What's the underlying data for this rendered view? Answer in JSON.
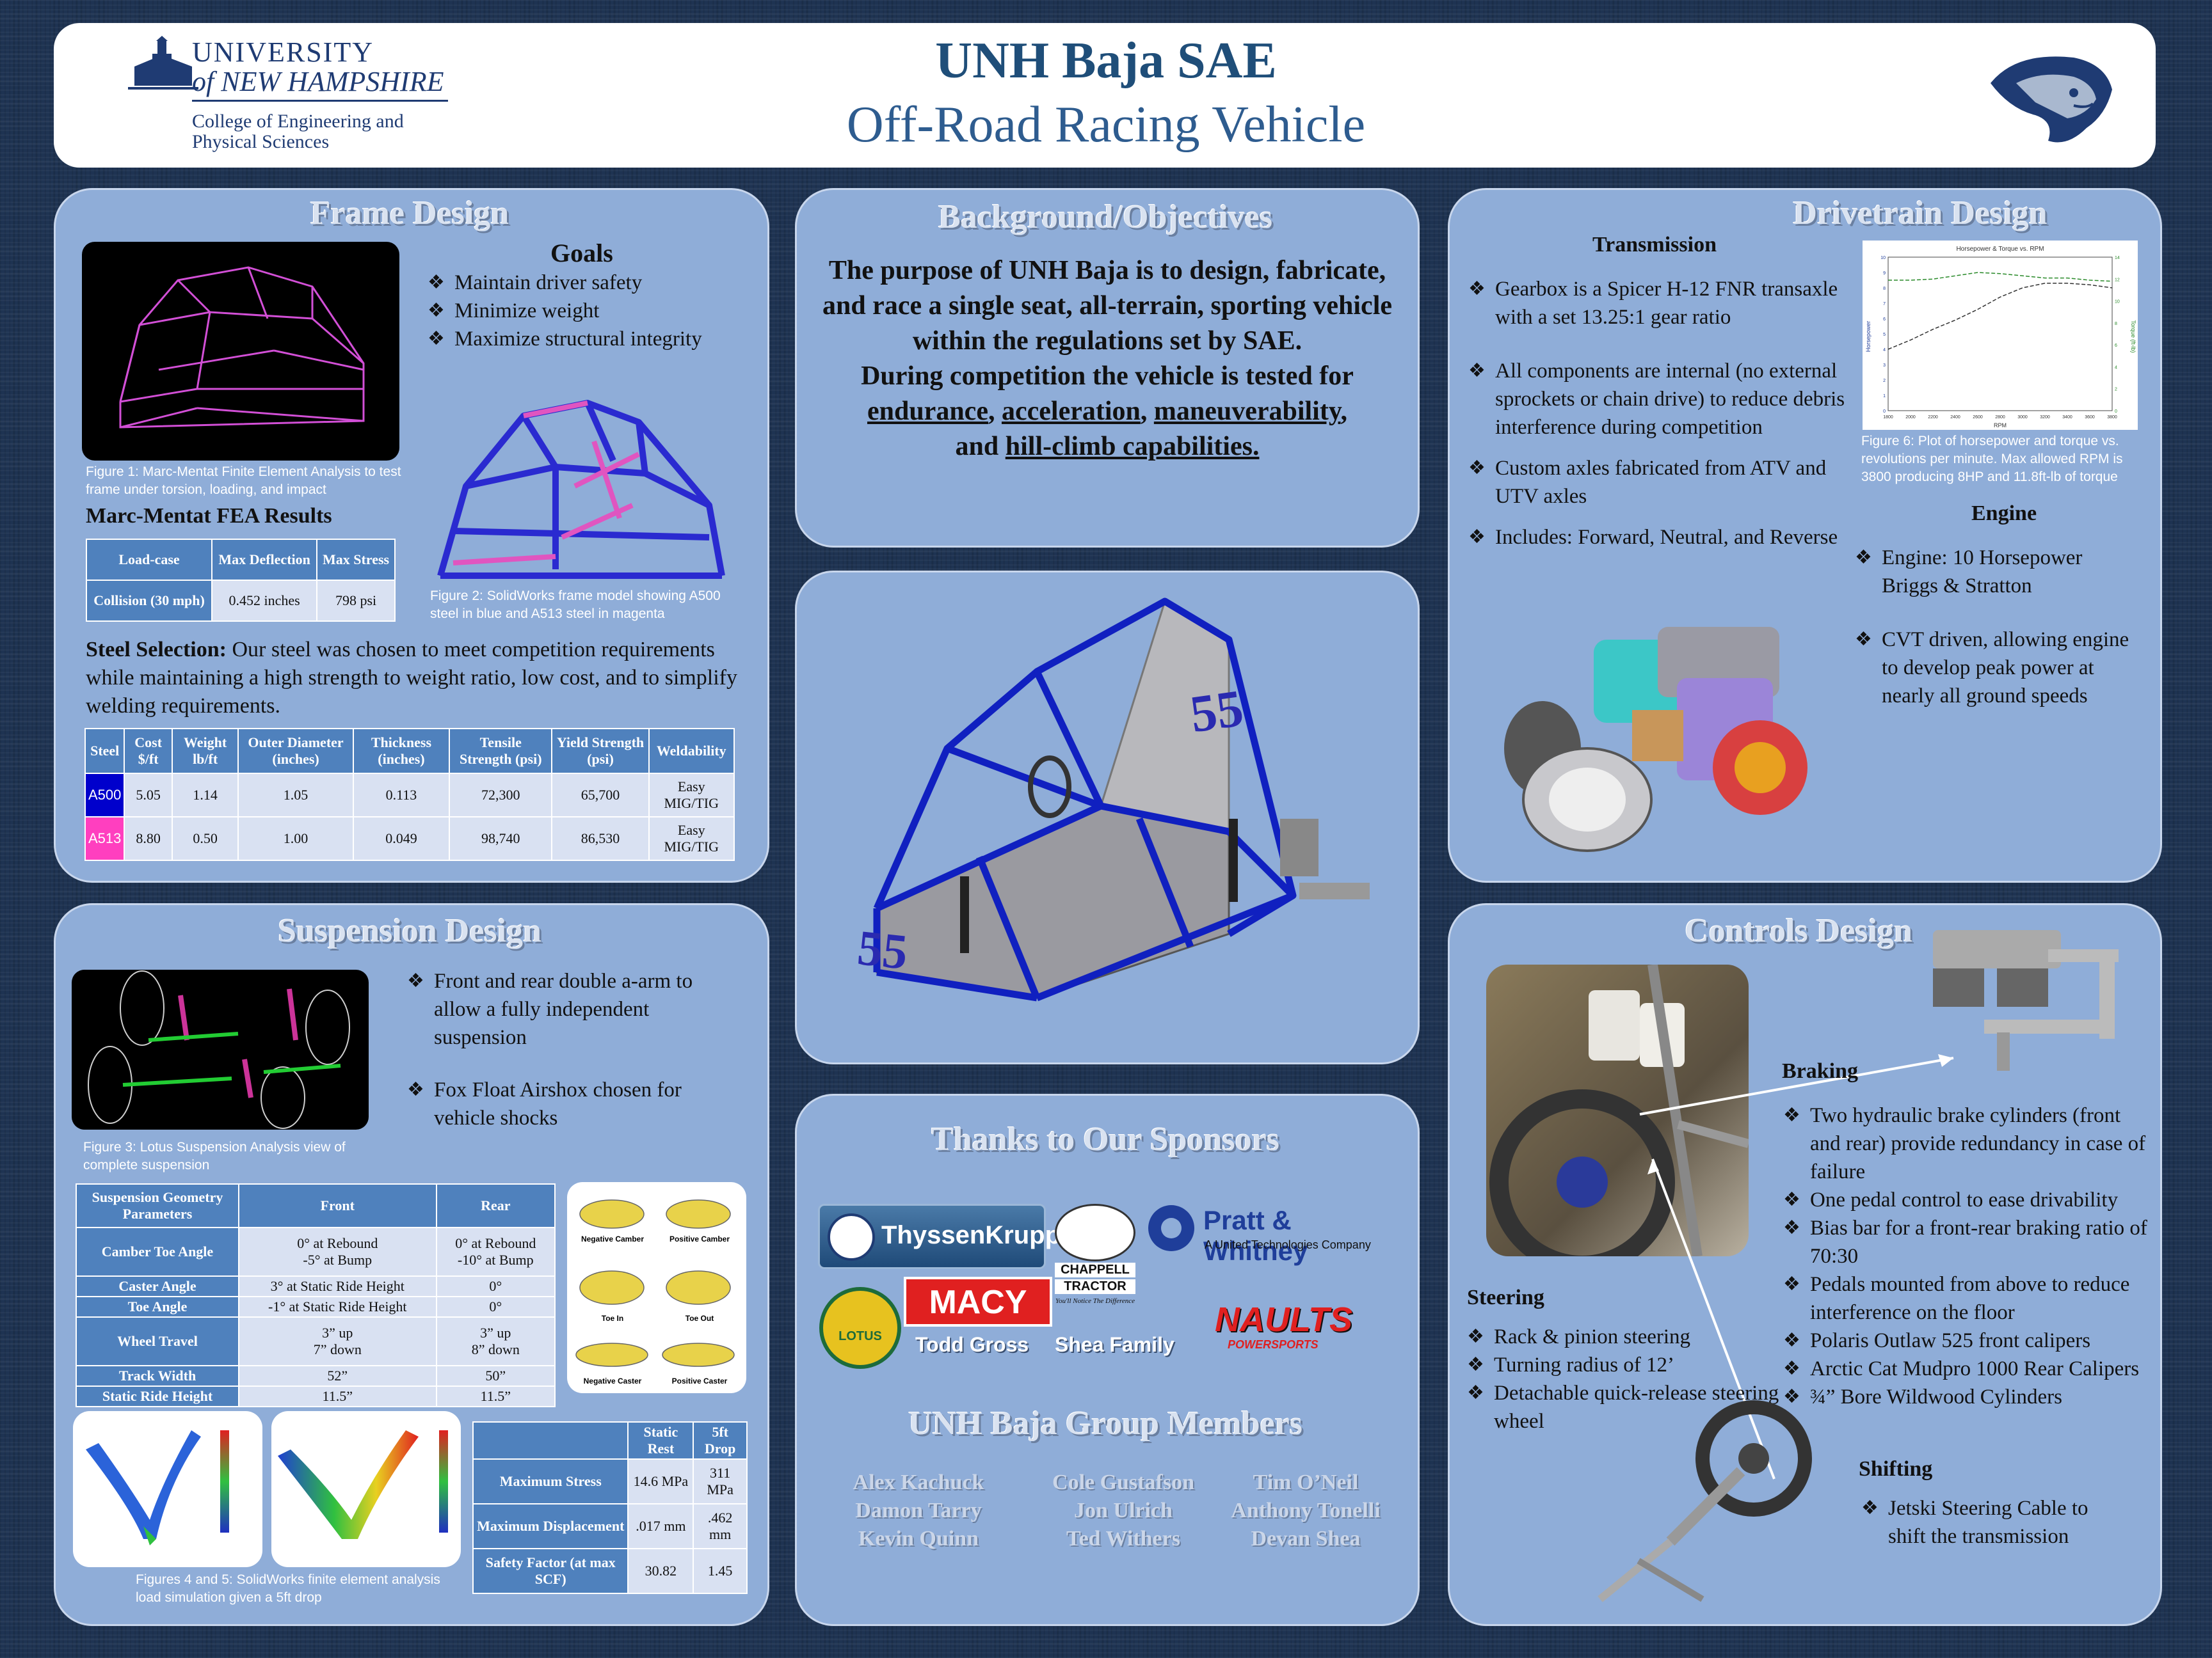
{
  "header": {
    "title": "UNH Baja SAE",
    "subtitle": "Off-Road Racing Vehicle",
    "university_line1": "UNIVERSITY",
    "university_line2": "of NEW HAMPSHIRE",
    "college": "College of Engineering and Physical Sciences"
  },
  "frame": {
    "title": "Frame Design",
    "goals_title": "Goals",
    "goals": [
      "Maintain driver safety",
      "Minimize weight",
      "Maximize structural integrity"
    ],
    "fig1": "Figure 1: Marc-Mentat Finite Element Analysis to test frame under torsion, loading, and impact",
    "fig2": "Figure 2: SolidWorks frame model showing A500 steel in blue and A513 steel in magenta",
    "fea_title": "Marc-Mentat FEA Results",
    "fea_headers": [
      "Load-case",
      "Max Deflection",
      "Max Stress"
    ],
    "fea_row": [
      "Collision (30 mph)",
      "0.452 inches",
      "798 psi"
    ],
    "steel_label": "Steel Selection:",
    "steel_text": " Our steel was chosen to meet competition requirements while maintaining a high strength to weight ratio, low cost, and to simplify welding requirements.",
    "steel_headers": [
      "Steel",
      "Cost $/ft",
      "Weight lb/ft",
      "Outer Diameter (inches)",
      "Thickness (inches)",
      "Tensile Strength (psi)",
      "Yield Strength (psi)",
      "Weldability"
    ],
    "steel_rows": [
      [
        "A500",
        "5.05",
        "1.14",
        "1.05",
        "0.113",
        "72,300",
        "65,700",
        "Easy MIG/TIG"
      ],
      [
        "A513",
        "8.80",
        "0.50",
        "1.00",
        "0.049",
        "98,740",
        "86,530",
        "Easy MIG/TIG"
      ]
    ],
    "colors": {
      "a500": "#0000cc",
      "a513": "#ff3fbf"
    }
  },
  "background": {
    "title": "Background/Objectives",
    "p1": "The purpose of UNH Baja is to design, fabricate, and race a single seat, all-terrain, sporting vehicle within the regulations set by SAE.",
    "p2_start": "During competition the vehicle is tested for",
    "link1": "endurance",
    "link2": "acceleration",
    "link3": "maneuverability",
    "and_text": "and",
    "link4": "hill-climb capabilities."
  },
  "car": {
    "number": "55"
  },
  "drivetrain": {
    "title": "Drivetrain Design",
    "transmission_title": "Transmission",
    "transmission": [
      "Gearbox is a Spicer H-12 FNR transaxle with a set 13.25:1 gear ratio",
      "All components are internal (no external sprockets or chain drive) to reduce debris interference during competition",
      "Custom axles fabricated from ATV and UTV axles",
      "Includes: Forward, Neutral, and Reverse"
    ],
    "fig6": "Figure 6: Plot of horsepower and torque vs. revolutions per minute. Max allowed RPM is 3800 producing 8HP and 11.8ft-lb of torque",
    "engine_title": "Engine",
    "engine": [
      "Engine: 10 Horsepower Briggs & Stratton",
      "CVT driven, allowing engine to develop peak power at nearly all ground speeds"
    ]
  },
  "suspension": {
    "title": "Suspension Design",
    "bullets": [
      "Front and rear double a-arm to allow a fully independent suspension",
      "Fox Float Airshox chosen for vehicle shocks"
    ],
    "fig3": "Figure 3: Lotus Suspension Analysis view of complete suspension",
    "geo_headers": [
      "Suspension Geometry Parameters",
      "Front",
      "Rear"
    ],
    "geo_rows": [
      [
        "Camber Toe Angle",
        "0° at Rebound\n-5° at Bump",
        "0° at Rebound\n-10° at Bump"
      ],
      [
        "Caster Angle",
        "3° at Static Ride Height",
        "0°"
      ],
      [
        "Toe Angle",
        "-1° at Static Ride Height",
        "0°"
      ],
      [
        "Wheel Travel",
        "3” up\n7” down",
        "3” up\n8” down"
      ],
      [
        "Track Width",
        "52”",
        "50”"
      ],
      [
        "Static Ride Height",
        "11.5”",
        "11.5”"
      ]
    ],
    "camber_labels": [
      "Negative Camber",
      "Positive Camber",
      "Toe In",
      "Toe Out",
      "Negative Caster",
      "Positive Caster"
    ],
    "stress_headers": [
      "",
      "Static Rest",
      "5ft Drop"
    ],
    "stress_rows": [
      [
        "Maximum Stress",
        "14.6 MPa",
        "311 MPa"
      ],
      [
        "Maximum Displacement",
        ".017 mm",
        ".462 mm"
      ],
      [
        "Safety Factor (at max SCF)",
        "30.82",
        "1.45"
      ]
    ],
    "fig45": "Figures 4 and 5: SolidWorks finite element analysis load simulation given a 5ft drop"
  },
  "sponsors": {
    "title": "Thanks to Our Sponsors",
    "thyssen": "ThyssenKrupp",
    "pratt": "Pratt & Whitney",
    "pratt_sub": "A United Technologies Company",
    "chappell1": "CHAPPELL",
    "chappell2": "TRACTOR",
    "chappell_tag": "You'll Notice The Difference",
    "lotus": "LOTUS",
    "macy": "MACY",
    "todd": "Todd Gross",
    "shea": "Shea Family",
    "naults1": "NAULTS",
    "naults2": "POWERSPORTS"
  },
  "members": {
    "title": "UNH Baja Group Members",
    "col1": [
      "Alex Kachuck",
      "Damon Tarry",
      "Kevin Quinn"
    ],
    "col2": [
      "Cole Gustafson",
      "Jon Ulrich",
      "Ted Withers"
    ],
    "col3": [
      "Tim O’Neil",
      "Anthony Tonelli",
      "Devan Shea"
    ]
  },
  "controls": {
    "title": "Controls Design",
    "braking_title": "Braking",
    "braking": [
      "Two hydraulic brake cylinders (front and rear) provide redundancy in case of failure",
      "One pedal control to ease drivability",
      "Bias bar for a front-rear braking ratio of 70:30",
      "Pedals mounted from above to reduce interference on the floor",
      "Polaris Outlaw 525 front calipers",
      "Arctic Cat Mudpro 1000 Rear Calipers",
      "¾” Bore Wildwood Cylinders"
    ],
    "steering_title": "Steering",
    "steering": [
      "Rack & pinion steering",
      "Turning radius of 12’",
      "Detachable quick-release steering wheel"
    ],
    "shifting_title": "Shifting",
    "shifting": [
      "Jetski Steering Cable to shift the transmission"
    ]
  },
  "bullet_glyph": "❖",
  "chart_data": {
    "type": "line",
    "title": "Horsepower & Torque vs. RPM",
    "xlabel": "RPM",
    "ylabel": "Horsepower",
    "y2label": "Torque (ft-lb)",
    "x": [
      1800,
      2000,
      2200,
      2400,
      2600,
      2800,
      3000,
      3200,
      3400,
      3600,
      3800
    ],
    "xlim": [
      1800,
      3800
    ],
    "ylim": [
      0,
      10
    ],
    "y2lim": [
      0,
      14
    ],
    "series": [
      {
        "values": [
          4.0,
          4.6,
          5.3,
          5.9,
          6.6,
          7.4,
          8.0,
          8.3,
          8.3,
          8.2,
          8.0
        ],
        "axis": "left"
      },
      {
        "values": [
          11.9,
          11.9,
          12.0,
          12.3,
          12.6,
          12.5,
          12.3,
          12.1,
          12.1,
          11.9,
          11.8
        ],
        "axis": "right"
      }
    ]
  }
}
